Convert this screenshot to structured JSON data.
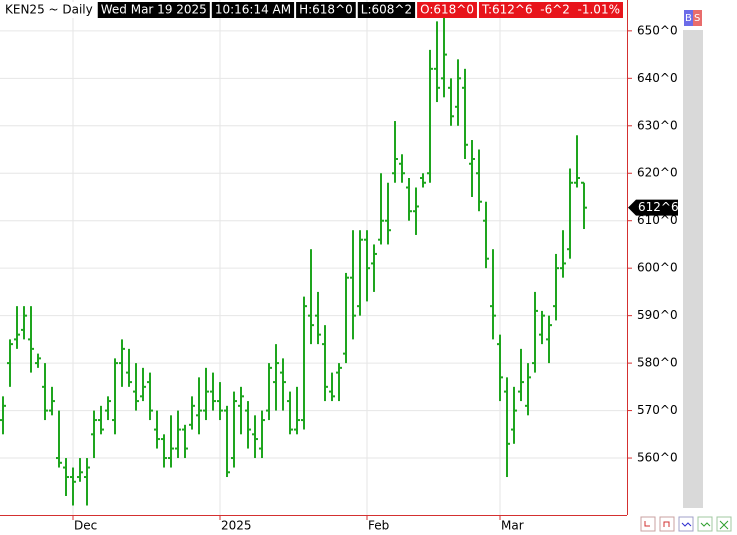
{
  "chart_data": {
    "type": "ohlc",
    "header": [
      {
        "text": "KEN25 ~ Daily",
        "bg": "#ffffff",
        "fg": "#000000"
      },
      {
        "text": "Wed Mar 19 2025",
        "bg": "#000000",
        "fg": "#ffffff"
      },
      {
        "text": "10:16:14 AM",
        "bg": "#000000",
        "fg": "#ffffff"
      },
      {
        "text": "H:618^0",
        "bg": "#000000",
        "fg": "#ffffff"
      },
      {
        "text": "L:608^2",
        "bg": "#000000",
        "fg": "#ffffff"
      },
      {
        "text": "O:618^0",
        "bg": "#e8141b",
        "fg": "#ffffff"
      },
      {
        "text": "T:612^6  -6^2  -1.01%",
        "bg": "#e8141b",
        "fg": "#ffffff"
      }
    ],
    "buttons": [
      "B",
      "S"
    ],
    "color": "#1ea51e",
    "grid": true,
    "categories": [
      null,
      null,
      null,
      null,
      null,
      null,
      null,
      null,
      null,
      null,
      "Dec",
      null,
      null,
      null,
      null,
      null,
      null,
      null,
      null,
      null,
      null,
      null,
      null,
      null,
      null,
      null,
      null,
      null,
      null,
      null,
      null,
      "2025",
      null,
      null,
      null,
      null,
      null,
      null,
      null,
      null,
      null,
      null,
      null,
      null,
      null,
      null,
      null,
      null,
      null,
      null,
      null,
      null,
      "Feb",
      null,
      null,
      null,
      null,
      null,
      null,
      null,
      null,
      null,
      null,
      null,
      null,
      null,
      null,
      null,
      null,
      null,
      null,
      "Mar",
      null,
      null,
      null,
      null,
      null,
      null,
      null,
      null,
      null,
      null,
      null,
      null
    ],
    "open": [
      568,
      580,
      585,
      587,
      585,
      580,
      575,
      570,
      560,
      558,
      556,
      556,
      556,
      565,
      568,
      570,
      568,
      580,
      578,
      574,
      573,
      576,
      566,
      564,
      560,
      562,
      566,
      567,
      569,
      570,
      574,
      572,
      570,
      560,
      571,
      570,
      565,
      562,
      570,
      576,
      578,
      572,
      566,
      568,
      590,
      590,
      584,
      574,
      578,
      582,
      598,
      592,
      606,
      601,
      606,
      610,
      620,
      622,
      617,
      612,
      619,
      620,
      642,
      640,
      638,
      634,
      638,
      622,
      620,
      610,
      592,
      584,
      574,
      566,
      574,
      571,
      580,
      586,
      585,
      592,
      600,
      604,
      618,
      618
    ],
    "high": [
      573,
      585,
      592,
      592,
      592,
      582,
      580,
      575,
      570,
      560,
      558,
      560,
      560,
      570,
      571,
      573,
      581,
      585,
      583,
      580,
      579,
      578,
      570,
      565,
      569,
      570,
      567,
      573,
      577,
      579,
      578,
      576,
      571,
      574,
      575,
      572,
      569,
      570,
      580,
      584,
      581,
      574,
      575,
      594,
      604,
      595,
      588,
      578,
      580,
      599,
      608,
      608,
      608,
      605,
      620,
      618,
      631,
      624,
      619,
      617,
      620,
      646,
      652,
      653,
      640,
      644,
      642,
      627,
      625,
      614,
      604,
      586,
      577,
      575,
      583,
      580,
      595,
      591,
      590,
      603,
      608,
      621,
      628,
      618
    ],
    "low": [
      565,
      575,
      583,
      585,
      578,
      579,
      568,
      569,
      558,
      552,
      550,
      555,
      550,
      560,
      565,
      568,
      565,
      575,
      575,
      570,
      572,
      568,
      562,
      558,
      558,
      560,
      560,
      566,
      565,
      568,
      570,
      568,
      556,
      558,
      565,
      562,
      560,
      560,
      568,
      570,
      570,
      565,
      565,
      566,
      584,
      584,
      572,
      572,
      572,
      580,
      585,
      590,
      593,
      595,
      605,
      605,
      618,
      618,
      610,
      607,
      617,
      618,
      635,
      636,
      630,
      630,
      623,
      615,
      612,
      600,
      585,
      572,
      556,
      563,
      572,
      569,
      578,
      584,
      580,
      589,
      598,
      602,
      617,
      608.25
    ],
    "close": [
      571,
      584,
      586,
      590,
      583,
      581,
      570,
      572,
      559,
      556,
      555,
      557,
      558,
      568,
      566,
      572,
      580,
      583,
      576,
      572,
      575,
      570,
      564,
      560,
      562,
      566,
      562,
      571,
      570,
      574,
      572,
      570,
      557,
      572,
      573,
      566,
      564,
      568,
      579,
      580,
      576,
      566,
      568,
      592,
      588,
      586,
      575,
      573,
      579,
      598,
      590,
      606,
      600,
      603,
      610,
      608,
      623,
      620,
      612,
      613,
      618,
      642,
      638,
      645,
      632,
      640,
      626,
      623,
      614,
      602,
      590,
      577,
      563,
      570,
      576,
      577,
      591,
      590,
      588,
      600,
      601,
      618,
      619,
      612.75
    ],
    "ylim": [
      548,
      656.5
    ],
    "yticks": [
      {
        "value": 560,
        "label": "560^0"
      },
      {
        "value": 570,
        "label": "570^0"
      },
      {
        "value": 580,
        "label": "580^0"
      },
      {
        "value": 590,
        "label": "590^0"
      },
      {
        "value": 600,
        "label": "600^0"
      },
      {
        "value": 610,
        "label": "610^0"
      },
      {
        "value": 620,
        "label": "620^0"
      },
      {
        "value": 630,
        "label": "630^0"
      },
      {
        "value": 640,
        "label": "640^0"
      },
      {
        "value": 650,
        "label": "650^0"
      }
    ],
    "last_price": {
      "value": 612.75,
      "label": "612^6"
    }
  }
}
